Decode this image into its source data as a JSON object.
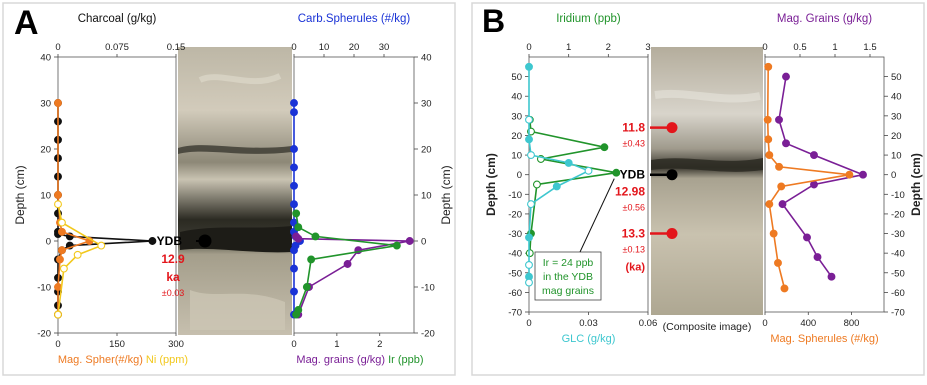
{
  "colors": {
    "black": "#111111",
    "orange": "#ee7a22",
    "yellow": "#f2c81c",
    "blue": "#1a33d6",
    "purple": "#7a1f96",
    "green": "#21942b",
    "cyan": "#3ec7cf",
    "red": "#e3151b",
    "panel_border": "#d6d6d6",
    "sed_light": "#c8c2b0",
    "sed_dark": "#222018"
  },
  "panels": [
    {
      "letter": "A",
      "core_photo_label": ""
    },
    {
      "letter": "B",
      "core_photo_label": "(Composite image)"
    }
  ],
  "chart_data": [
    {
      "type": "line",
      "panel": "A",
      "subplot": "A-left",
      "title": "",
      "ylabel": "Depth (cm)",
      "ylim": [
        -20,
        40
      ],
      "yticks": [
        "40",
        "30",
        "20",
        "10",
        "0",
        "-10",
        "-20"
      ],
      "top_axis": {
        "label": "Charcoal (g/kg)",
        "ticks": [
          "0",
          "0.075",
          "0.15"
        ],
        "range": [
          0,
          0.15
        ]
      },
      "bottom_axis": {
        "label_parts": [
          "Mag. Spher(#/kg)",
          "Ni (ppm)"
        ],
        "ticks": [
          "0",
          "150",
          "300"
        ],
        "range": [
          0,
          300
        ]
      },
      "series": [
        {
          "name": "Charcoal (g/kg)",
          "axis": "top",
          "color": "black",
          "marker": "filled",
          "x": [
            0,
            0,
            0,
            0,
            0,
            0,
            0,
            0,
            0,
            0.015,
            0.12,
            0.015,
            0.005,
            0,
            0,
            0,
            0,
            0
          ],
          "y": [
            30,
            26,
            22,
            18,
            14,
            10,
            6,
            2,
            1.5,
            1,
            0,
            -1,
            -2,
            -4,
            -8,
            -11,
            -14,
            -16
          ]
        },
        {
          "name": "Mag. Spher(#/kg)",
          "axis": "bottom",
          "color": "orange",
          "marker": "filled",
          "x": [
            0,
            0,
            5,
            10,
            80,
            10,
            5,
            0,
            0
          ],
          "y": [
            30,
            10,
            4,
            2,
            0,
            -2,
            -4,
            -10,
            -16
          ]
        },
        {
          "name": "Ni (ppm)",
          "axis": "bottom",
          "color": "yellow",
          "marker": "open",
          "x": [
            0,
            10,
            110,
            50,
            15,
            0
          ],
          "y": [
            8,
            4,
            -1,
            -3,
            -6,
            -16
          ]
        }
      ]
    },
    {
      "type": "line",
      "panel": "A",
      "subplot": "A-right",
      "title": "",
      "ylabel": "Depth (cm)",
      "ylim": [
        -20,
        40
      ],
      "yticks": [
        "40",
        "30",
        "20",
        "10",
        "0",
        "-10",
        "-20"
      ],
      "top_axis": {
        "label": "Carb.Spherules (#/kg)",
        "ticks": [
          "0",
          "10",
          "20",
          "30"
        ],
        "range": [
          0,
          40
        ]
      },
      "bottom_axis": {
        "label_parts": [
          "Mag. grains (g/kg)",
          "Ir (ppb)"
        ],
        "ticks": [
          "0",
          "1",
          "2"
        ],
        "range": [
          0,
          2.8
        ]
      },
      "series": [
        {
          "name": "Carb.Spherules (#/kg)",
          "axis": "top",
          "color": "blue",
          "marker": "filled",
          "x": [
            0,
            0,
            0,
            0,
            0,
            0,
            0,
            0,
            0.5,
            2,
            0.5,
            0,
            0,
            0,
            0
          ],
          "y": [
            30,
            28,
            20,
            16,
            12,
            8,
            4,
            2,
            1,
            0,
            -1,
            -2,
            -6,
            -11,
            -16
          ]
        },
        {
          "name": "Mag. grains (g/kg)",
          "axis": "bottom",
          "color": "purple",
          "marker": "filled",
          "x": [
            0.05,
            0.1,
            2.7,
            1.5,
            1.25,
            0.35,
            0.1
          ],
          "y": [
            1,
            0.5,
            0,
            -2,
            -5,
            -10,
            -16
          ]
        },
        {
          "name": "Ir (ppb)",
          "axis": "bottom",
          "color": "green",
          "marker": "filled",
          "x": [
            0.05,
            0.1,
            0.5,
            2.4,
            0.4,
            0.3,
            0.1,
            0.05
          ],
          "y": [
            6,
            3,
            1,
            -1,
            -4,
            -10,
            -15,
            -16
          ]
        }
      ]
    },
    {
      "type": "line",
      "panel": "B",
      "subplot": "B-left",
      "title": "",
      "ylabel": "Depth (cm)",
      "ylim": [
        -70,
        60
      ],
      "yticks": [
        "50",
        "40",
        "30",
        "20",
        "10",
        "0",
        "-10",
        "-20",
        "-30",
        "-40",
        "-50",
        "-60",
        "-70"
      ],
      "top_axis": {
        "label": "Iridium (ppb)",
        "ticks": [
          "0",
          "1",
          "2",
          "3"
        ],
        "range": [
          0,
          3
        ]
      },
      "bottom_axis": {
        "label_parts": [
          "GLC (g/kg)"
        ],
        "ticks": [
          "0",
          "0.03",
          "0.06"
        ],
        "range": [
          0,
          0.06
        ]
      },
      "series": [
        {
          "name": "Iridium (ppb)",
          "axis": "top",
          "color": "green",
          "marker": "mixed",
          "x": [
            0.02,
            0.05,
            1.9,
            0.3,
            2.2,
            0.2,
            0.05,
            0.02
          ],
          "y": [
            28,
            22,
            14,
            8,
            1,
            -5,
            -30,
            -40
          ]
        },
        {
          "name": "GLC (g/kg)",
          "axis": "bottom",
          "color": "cyan",
          "marker": "mixed",
          "x": [
            0,
            0,
            0,
            0.001,
            0.02,
            0.03,
            0.014,
            0.001,
            0,
            0,
            0,
            0
          ],
          "y": [
            55,
            28,
            18,
            10,
            6,
            2,
            -6,
            -15,
            -32,
            -46,
            -52,
            -55
          ]
        }
      ],
      "annotation": {
        "lines": [
          "Ir = 24 ppb",
          "in the YDB",
          "mag grains"
        ]
      }
    },
    {
      "type": "line",
      "panel": "B",
      "subplot": "B-right",
      "title": "",
      "ylabel": "Depth (cm)",
      "ylim": [
        -70,
        60
      ],
      "yticks": [
        "50",
        "40",
        "30",
        "20",
        "10",
        "0",
        "-10",
        "-20",
        "-30",
        "-40",
        "-50",
        "-60",
        "-70"
      ],
      "top_axis": {
        "label": "Mag. Grains (g/kg)",
        "ticks": [
          "0",
          "0.5",
          "1",
          "1.5"
        ],
        "range": [
          0,
          1.7
        ]
      },
      "bottom_axis": {
        "label_parts": [
          "Mag. Spherules (#/kg)"
        ],
        "ticks": [
          "0",
          "400",
          "800"
        ],
        "range": [
          0,
          1100
        ]
      },
      "series": [
        {
          "name": "Mag. Grains (g/kg)",
          "axis": "top",
          "color": "purple",
          "marker": "filled",
          "x": [
            0.3,
            0.2,
            0.3,
            0.7,
            1.4,
            0.7,
            0.25,
            0.6,
            0.75,
            0.95
          ],
          "y": [
            50,
            28,
            16,
            10,
            0,
            -5,
            -15,
            -32,
            -42,
            -52
          ]
        },
        {
          "name": "Mag. Spherules (#/kg)",
          "axis": "bottom",
          "color": "orange",
          "marker": "filled",
          "x": [
            30,
            25,
            30,
            40,
            130,
            780,
            150,
            40,
            80,
            120,
            180
          ],
          "y": [
            55,
            28,
            18,
            10,
            4,
            0,
            -6,
            -15,
            -30,
            -45,
            -58
          ]
        }
      ]
    }
  ],
  "dates": {
    "A": [
      {
        "ydb_label": "YDB",
        "value": "12.9",
        "unit": "ka",
        "err": "±0.03",
        "depth": 0
      }
    ],
    "B": [
      {
        "value": "11.8",
        "err": "±0.43",
        "depth": 24
      },
      {
        "ydb_label": "YDB",
        "value": "12.98",
        "err": "±0.56",
        "depth": 0
      },
      {
        "value": "13.3",
        "err": "±0.13",
        "unit": "(ka)",
        "depth": -30
      }
    ]
  }
}
